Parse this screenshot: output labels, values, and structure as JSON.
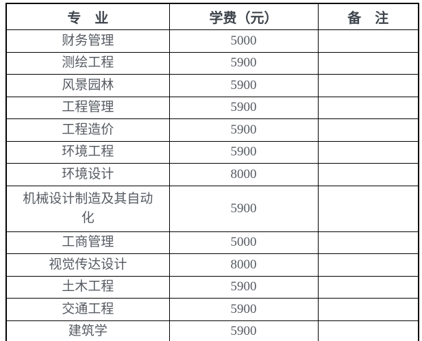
{
  "colors": {
    "border": "#000000",
    "header_text": "#3f454d",
    "body_text": "#565b62",
    "background": "#ffffff"
  },
  "chart_data": {
    "type": "table",
    "title": "",
    "columns": [
      "专　业",
      "学费（元）",
      "备　注"
    ],
    "rows": [
      {
        "major": "财务管理",
        "fee": "5000",
        "note": ""
      },
      {
        "major": "测绘工程",
        "fee": "5900",
        "note": ""
      },
      {
        "major": "风景园林",
        "fee": "5900",
        "note": ""
      },
      {
        "major": "工程管理",
        "fee": "5900",
        "note": ""
      },
      {
        "major": "工程造价",
        "fee": "5900",
        "note": ""
      },
      {
        "major": "环境工程",
        "fee": "5900",
        "note": ""
      },
      {
        "major": "环境设计",
        "fee": "8000",
        "note": ""
      },
      {
        "major": "机械设计制造及其自动化",
        "fee": "5900",
        "note": ""
      },
      {
        "major": "工商管理",
        "fee": "5000",
        "note": ""
      },
      {
        "major": "视觉传达设计",
        "fee": "8000",
        "note": ""
      },
      {
        "major": "土木工程",
        "fee": "5900",
        "note": ""
      },
      {
        "major": "交通工程",
        "fee": "5900",
        "note": ""
      },
      {
        "major": "建筑学",
        "fee": "5900",
        "note": ""
      }
    ]
  }
}
